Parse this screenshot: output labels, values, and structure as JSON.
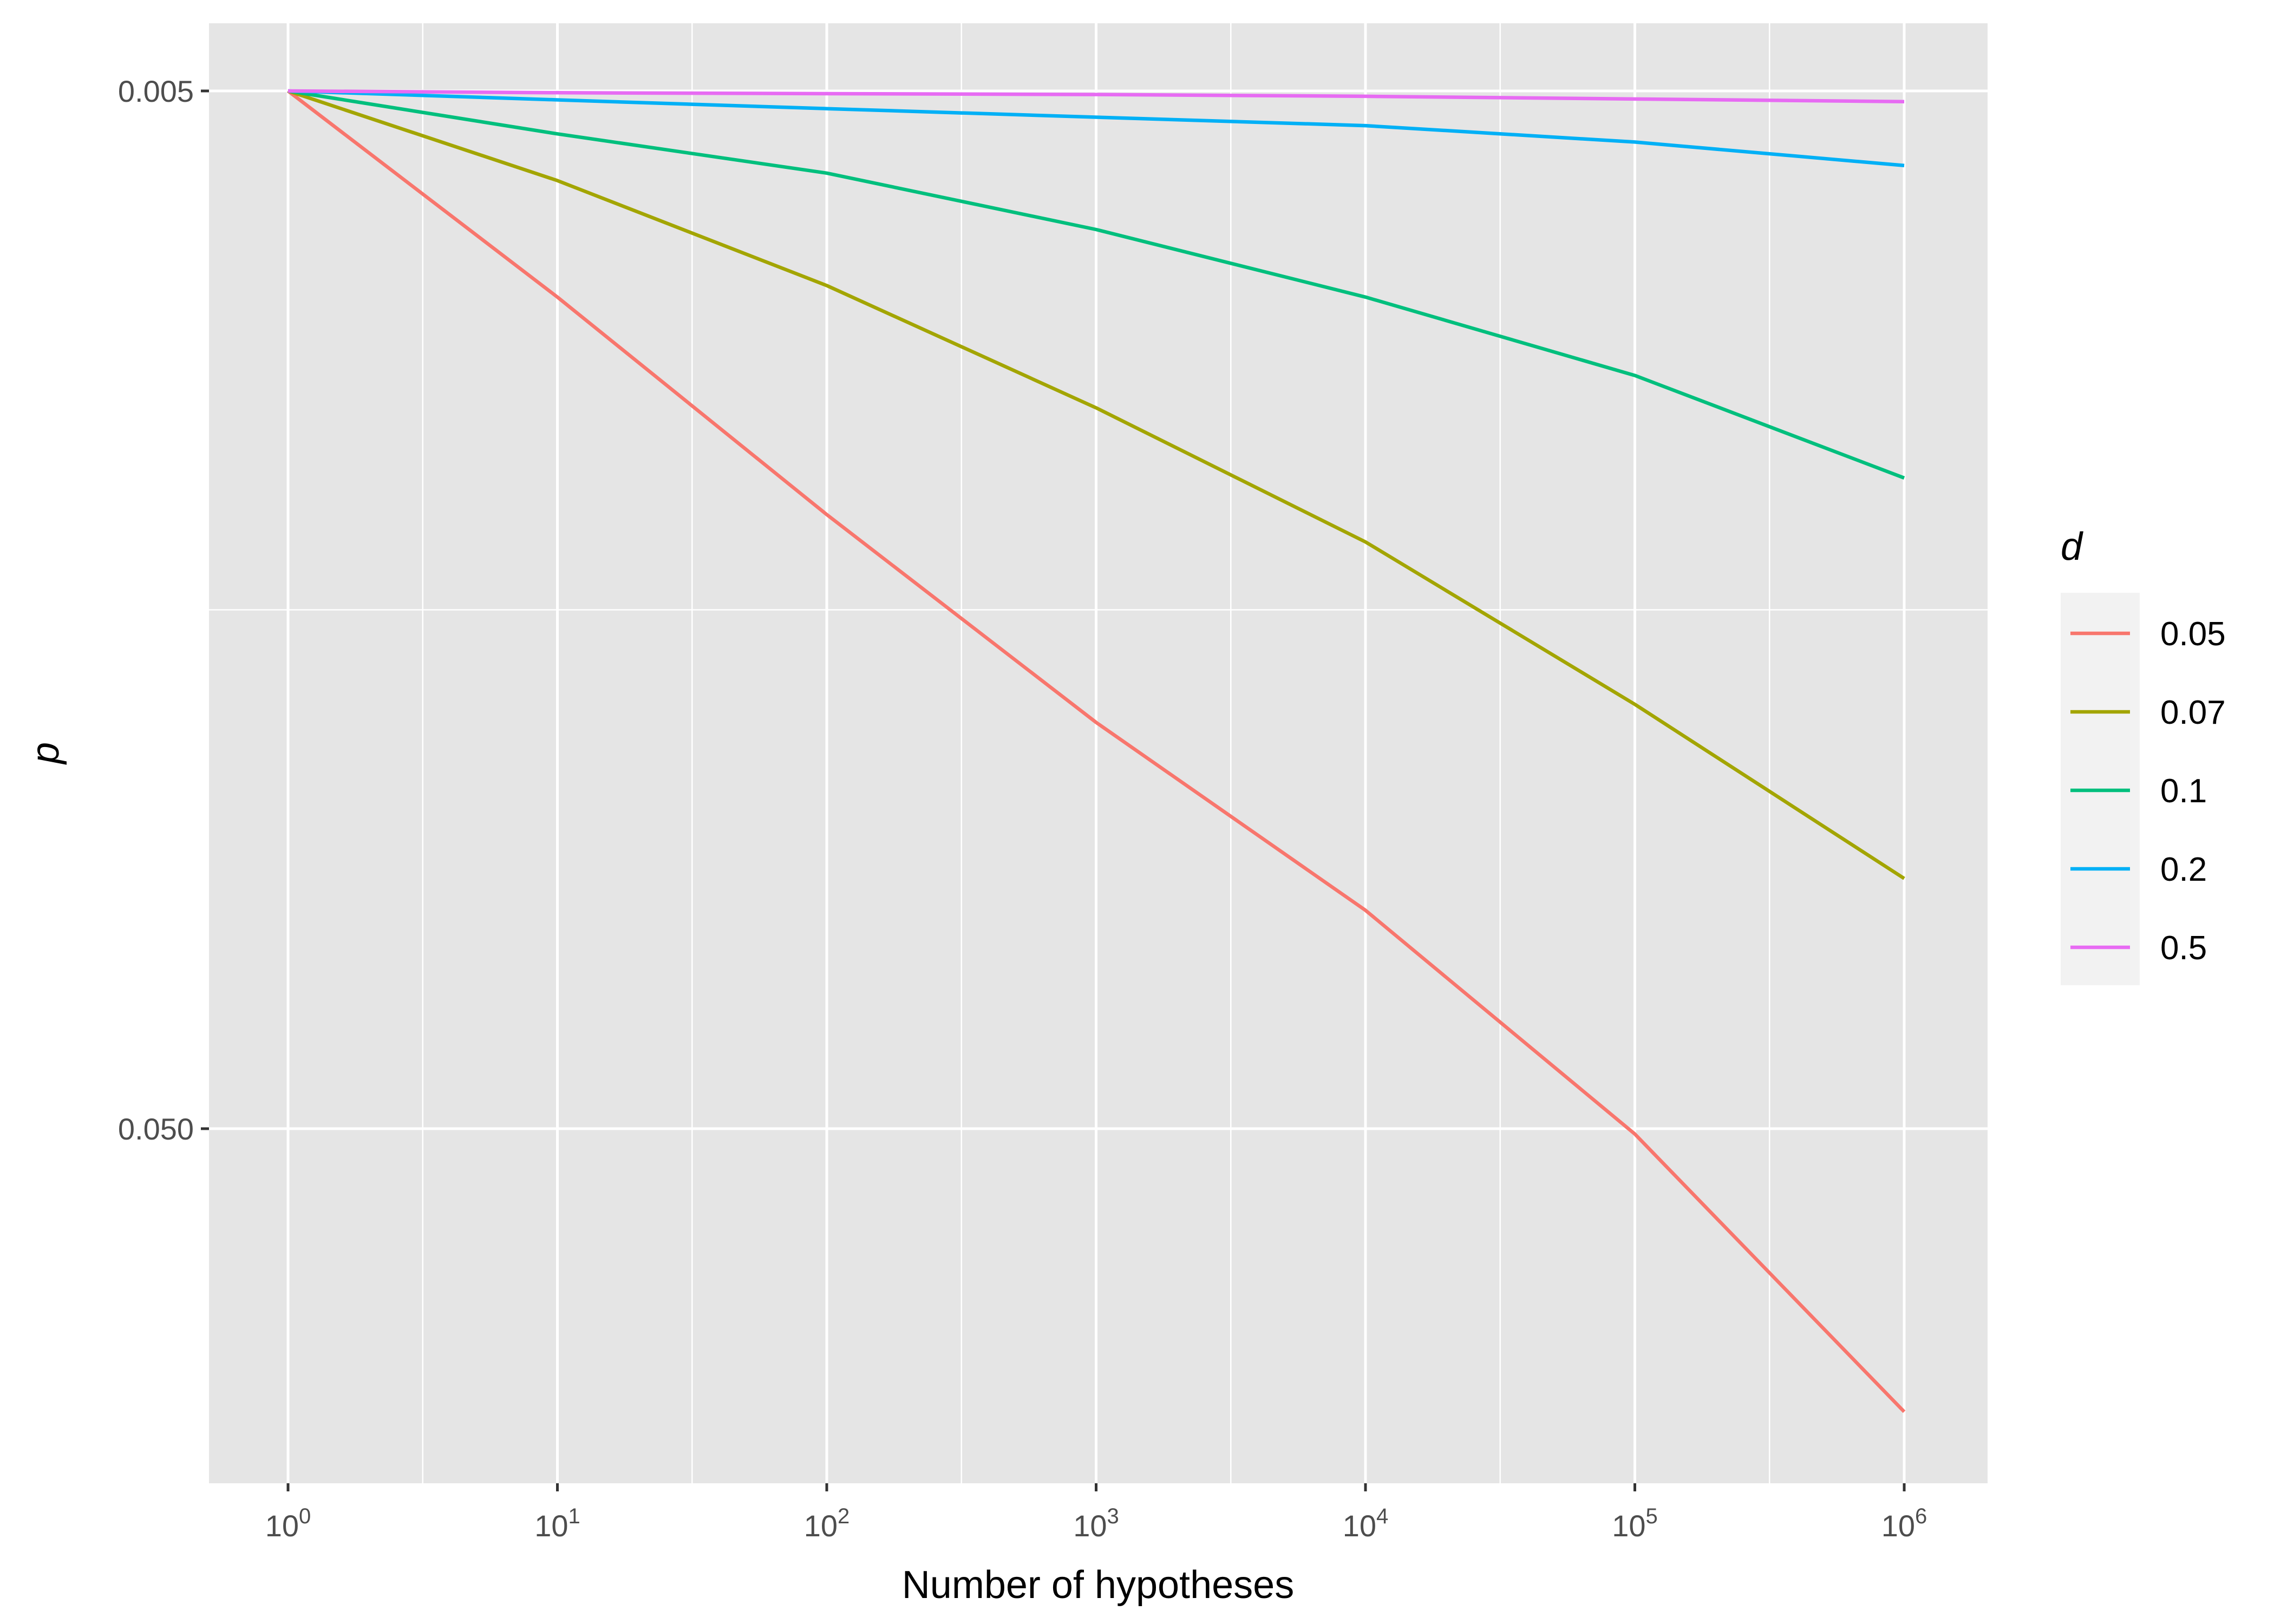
{
  "chart_data": {
    "type": "line",
    "title": "",
    "xlabel": "Number of hypotheses",
    "ylabel": "p",
    "x_scale": "log10",
    "y_scale": "log10-reversed",
    "xlim": [
      1,
      1000000
    ],
    "ylim": [
      0.005,
      0.05
    ],
    "x_ticks": [
      {
        "value": 1,
        "base": "10",
        "exp": "0"
      },
      {
        "value": 10,
        "base": "10",
        "exp": "1"
      },
      {
        "value": 100,
        "base": "10",
        "exp": "2"
      },
      {
        "value": 1000,
        "base": "10",
        "exp": "3"
      },
      {
        "value": 10000,
        "base": "10",
        "exp": "4"
      },
      {
        "value": 100000,
        "base": "10",
        "exp": "5"
      },
      {
        "value": 1000000,
        "base": "10",
        "exp": "6"
      }
    ],
    "y_ticks": [
      {
        "value": 0.005,
        "label": "0.005"
      },
      {
        "value": 0.05,
        "label": "0.050"
      }
    ],
    "x": [
      1,
      10,
      100,
      1000,
      10000,
      100000,
      1000000
    ],
    "series": [
      {
        "name": "0.05",
        "color": "#F8766D",
        "values": [
          0.005,
          0.0079,
          0.0128,
          0.0203,
          0.0308,
          0.0506,
          0.0937
        ]
      },
      {
        "name": "0.07",
        "color": "#A3A500",
        "values": [
          0.005,
          0.0061,
          0.0077,
          0.0101,
          0.0136,
          0.0195,
          0.0287
        ]
      },
      {
        "name": "0.1",
        "color": "#00BF7D",
        "values": [
          0.005,
          0.0055,
          0.006,
          0.0068,
          0.0079,
          0.0094,
          0.0118
        ]
      },
      {
        "name": "0.2",
        "color": "#00B0F6",
        "values": [
          0.005,
          0.0051,
          0.0052,
          0.0053,
          0.0054,
          0.0056,
          0.0059
        ]
      },
      {
        "name": "0.5",
        "color": "#E76BF3",
        "values": [
          0.005,
          0.00502,
          0.00503,
          0.00504,
          0.00506,
          0.00509,
          0.00512
        ]
      }
    ],
    "legend": {
      "title": "d",
      "position": "right"
    },
    "grid": true
  }
}
